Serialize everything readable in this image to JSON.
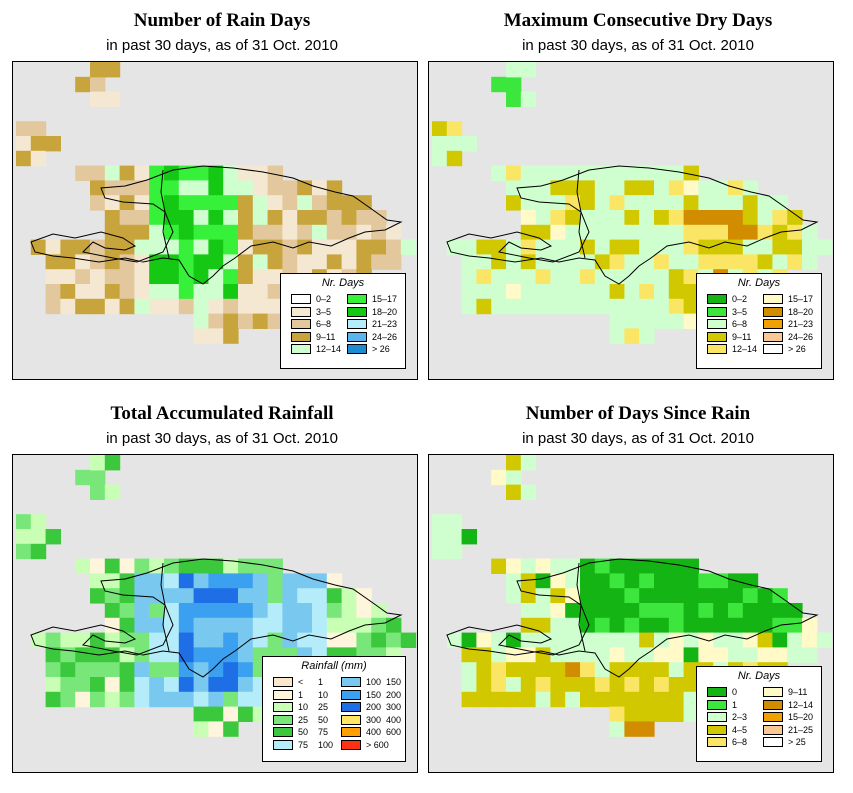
{
  "panels": [
    {
      "id": "rain-days",
      "title": "Number of Rain Days",
      "subtitle": "in past 30 days, as of  31 Oct. 2010",
      "legend": {
        "title": "Nr. Days",
        "items": [
          {
            "label": "0–2",
            "color": "#ffffff"
          },
          {
            "label": "3–5",
            "color": "#f5e8d2"
          },
          {
            "label": "6–8",
            "color": "#e2c89c"
          },
          {
            "label": "9–11",
            "color": "#c8a43c"
          },
          {
            "label": "12–14",
            "color": "#cfffcf"
          },
          {
            "label": "15–17",
            "color": "#36f03a"
          },
          {
            "label": "18–20",
            "color": "#14c814"
          },
          {
            "label": "21–23",
            "color": "#b4ecfa"
          },
          {
            "label": "24–26",
            "color": "#5ab4f0"
          },
          {
            "label": "> 26",
            "color": "#1e8cd2"
          }
        ]
      }
    },
    {
      "id": "max-dry-days",
      "title": "Maximum Consecutive Dry Days",
      "subtitle": "in past 30 days, as of  31 Oct. 2010",
      "legend": {
        "title": "Nr. Days",
        "items": [
          {
            "label": "0–2",
            "color": "#14b414"
          },
          {
            "label": "3–5",
            "color": "#3ce63c"
          },
          {
            "label": "6–8",
            "color": "#cfffcf"
          },
          {
            "label": "9–11",
            "color": "#d2c800"
          },
          {
            "label": "12–14",
            "color": "#fae664"
          },
          {
            "label": "15–17",
            "color": "#fffac8"
          },
          {
            "label": "18–20",
            "color": "#d28c00"
          },
          {
            "label": "21–23",
            "color": "#f0a000"
          },
          {
            "label": "24–26",
            "color": "#fac896"
          },
          {
            "label": "> 26",
            "color": "#ffffff"
          }
        ]
      }
    },
    {
      "id": "total-rainfall",
      "title": "Total Accumulated Rainfall",
      "subtitle": "in past 30 days, as of  31 Oct. 2010",
      "legend": {
        "title": "Rainfall (mm)",
        "items": [
          {
            "from": "<",
            "to": "1",
            "color": "#fae6c8"
          },
          {
            "from": "1",
            "to": "10",
            "color": "#fff5dc"
          },
          {
            "from": "10",
            "to": "25",
            "color": "#c8ffb4"
          },
          {
            "from": "25",
            "to": "50",
            "color": "#78e678"
          },
          {
            "from": "50",
            "to": "75",
            "color": "#3cc83c"
          },
          {
            "from": "75",
            "to": "100",
            "color": "#b4ecfa"
          },
          {
            "from": "100",
            "to": "150",
            "color": "#78c8f0"
          },
          {
            "from": "150",
            "to": "200",
            "color": "#3ca0f0"
          },
          {
            "from": "200",
            "to": "300",
            "color": "#1e6ee6"
          },
          {
            "from": "300",
            "to": "400",
            "color": "#ffe664"
          },
          {
            "from": "400",
            "to": "600",
            "color": "#ffa000"
          },
          {
            "from": "> 600",
            "to": "",
            "color": "#ff3214"
          }
        ]
      }
    },
    {
      "id": "days-since-rain",
      "title": "Number of Days Since Rain",
      "subtitle": "in past 30 days, as of  31 Oct. 2010",
      "legend": {
        "title": "Nr. Days",
        "items": [
          {
            "label": "0",
            "color": "#14b414"
          },
          {
            "label": "1",
            "color": "#3ce63c"
          },
          {
            "label": "2–3",
            "color": "#cfffcf"
          },
          {
            "label": "4–5",
            "color": "#d2c800"
          },
          {
            "label": "6–8",
            "color": "#fae664"
          },
          {
            "label": "9–11",
            "color": "#fffac8"
          },
          {
            "label": "12–14",
            "color": "#d28c00"
          },
          {
            "label": "15–20",
            "color": "#f0a000"
          },
          {
            "label": "21–25",
            "color": "#fac896"
          },
          {
            "label": "> 25",
            "color": "#ffffff"
          }
        ]
      }
    }
  ]
}
